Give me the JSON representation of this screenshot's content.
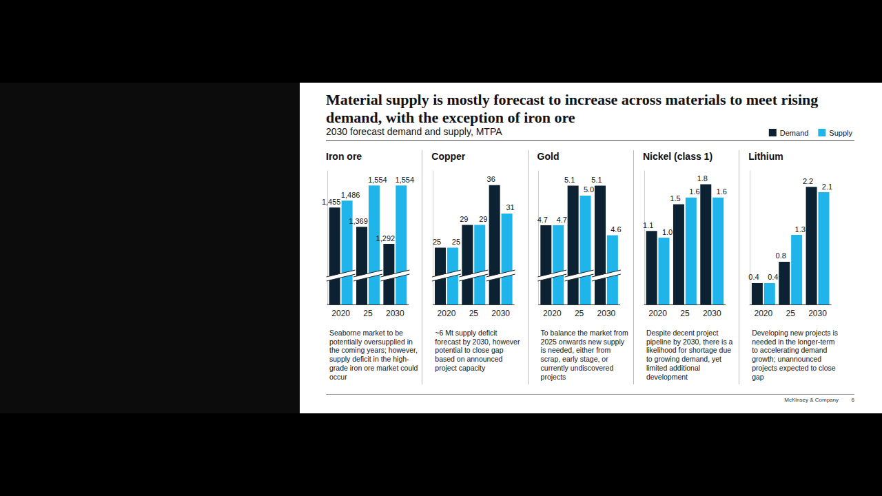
{
  "title": "Material supply is mostly forecast to increase across materials to meet rising demand, with the exception of iron ore",
  "subtitle": "2030 forecast demand and supply, MTPA",
  "legend": "top-right",
  "footer": {
    "source": "McKinsey & Company",
    "page": 6
  },
  "chart_data": [
    {
      "type": "bar",
      "title": "Iron ore",
      "categories": [
        "2020",
        "25",
        "2030"
      ],
      "series": [
        {
          "name": "Demand",
          "color": "#0c2132",
          "values": [
            1455,
            1369,
            1292
          ],
          "value_labels": [
            "1,455",
            "1,369",
            "1,292"
          ]
        },
        {
          "name": "Supply",
          "color": "#1fb5ea",
          "values": [
            1486,
            1554,
            1554
          ],
          "value_labels": [
            "1,486",
            "1,554",
            "1,554"
          ]
        }
      ],
      "ylim": [
        1020,
        1620
      ],
      "yticks": [],
      "tick_labels": "x",
      "data_labels": true,
      "annotation": "Seaborne market to be potentially oversupplied in the coming years; however, supply deficit in the high-grade iron ore market could occur"
    },
    {
      "type": "bar",
      "title": "Copper",
      "categories": [
        "2020",
        "25",
        "2030"
      ],
      "series": [
        {
          "name": "Demand",
          "color": "#0c2132",
          "values": [
            25,
            29,
            36
          ]
        },
        {
          "name": "Supply",
          "color": "#1fb5ea",
          "values": [
            25,
            29,
            31
          ]
        }
      ],
      "ylim": [
        15,
        38.5
      ],
      "yticks": [],
      "tick_labels": "x",
      "data_labels": true,
      "annotation": "~6 Mt supply deficit forecast by 2030, however potential to close gap based on announced project capacity"
    },
    {
      "type": "bar",
      "title": "Gold",
      "categories": [
        "2020",
        "25",
        "2030"
      ],
      "series": [
        {
          "name": "Demand",
          "color": "#0c2132",
          "values": [
            4.7,
            5.1,
            5.1
          ]
        },
        {
          "name": "Supply",
          "color": "#1fb5ea",
          "values": [
            4.7,
            5.0,
            4.6
          ],
          "value_labels": [
            "4.7",
            "5.0",
            "4.6"
          ]
        }
      ],
      "ylim": [
        3.9,
        5.25
      ],
      "yticks": [],
      "tick_labels": "x",
      "data_labels": true,
      "annotation": "To balance the market from 2025 onwards new supply is needed, either from scrap, early stage, or currently undiscovered projects"
    },
    {
      "type": "bar",
      "title": "Nickel (class 1)",
      "categories": [
        "2020",
        "25",
        "2030"
      ],
      "series": [
        {
          "name": "Demand",
          "color": "#0c2132",
          "values": [
            1.1,
            1.5,
            1.8
          ]
        },
        {
          "name": "Supply",
          "color": "#1fb5ea",
          "values": [
            1.0,
            1.6,
            1.6
          ],
          "value_labels": [
            "1.0",
            "1.6",
            "1.6"
          ]
        }
      ],
      "ylim": [
        0,
        2
      ],
      "yticks": [],
      "tick_labels": "x",
      "data_labels": true,
      "annotation": "Despite decent project pipeline by 2030, there is a likelihood for shortage due to growing demand, yet limited additional development"
    },
    {
      "type": "bar",
      "title": "Lithium",
      "categories": [
        "2020",
        "25",
        "2030"
      ],
      "series": [
        {
          "name": "Demand",
          "color": "#0c2132",
          "values": [
            0.4,
            0.8,
            2.2
          ]
        },
        {
          "name": "Supply",
          "color": "#1fb5ea",
          "values": [
            0.4,
            1.3,
            2.1
          ]
        }
      ],
      "ylim": [
        0,
        2.5
      ],
      "yticks": [],
      "tick_labels": "x",
      "data_labels": true,
      "annotation": "Developing new projects is needed in the longer-term to accelerating demand growth; unannounced projects expected to close gap"
    }
  ]
}
